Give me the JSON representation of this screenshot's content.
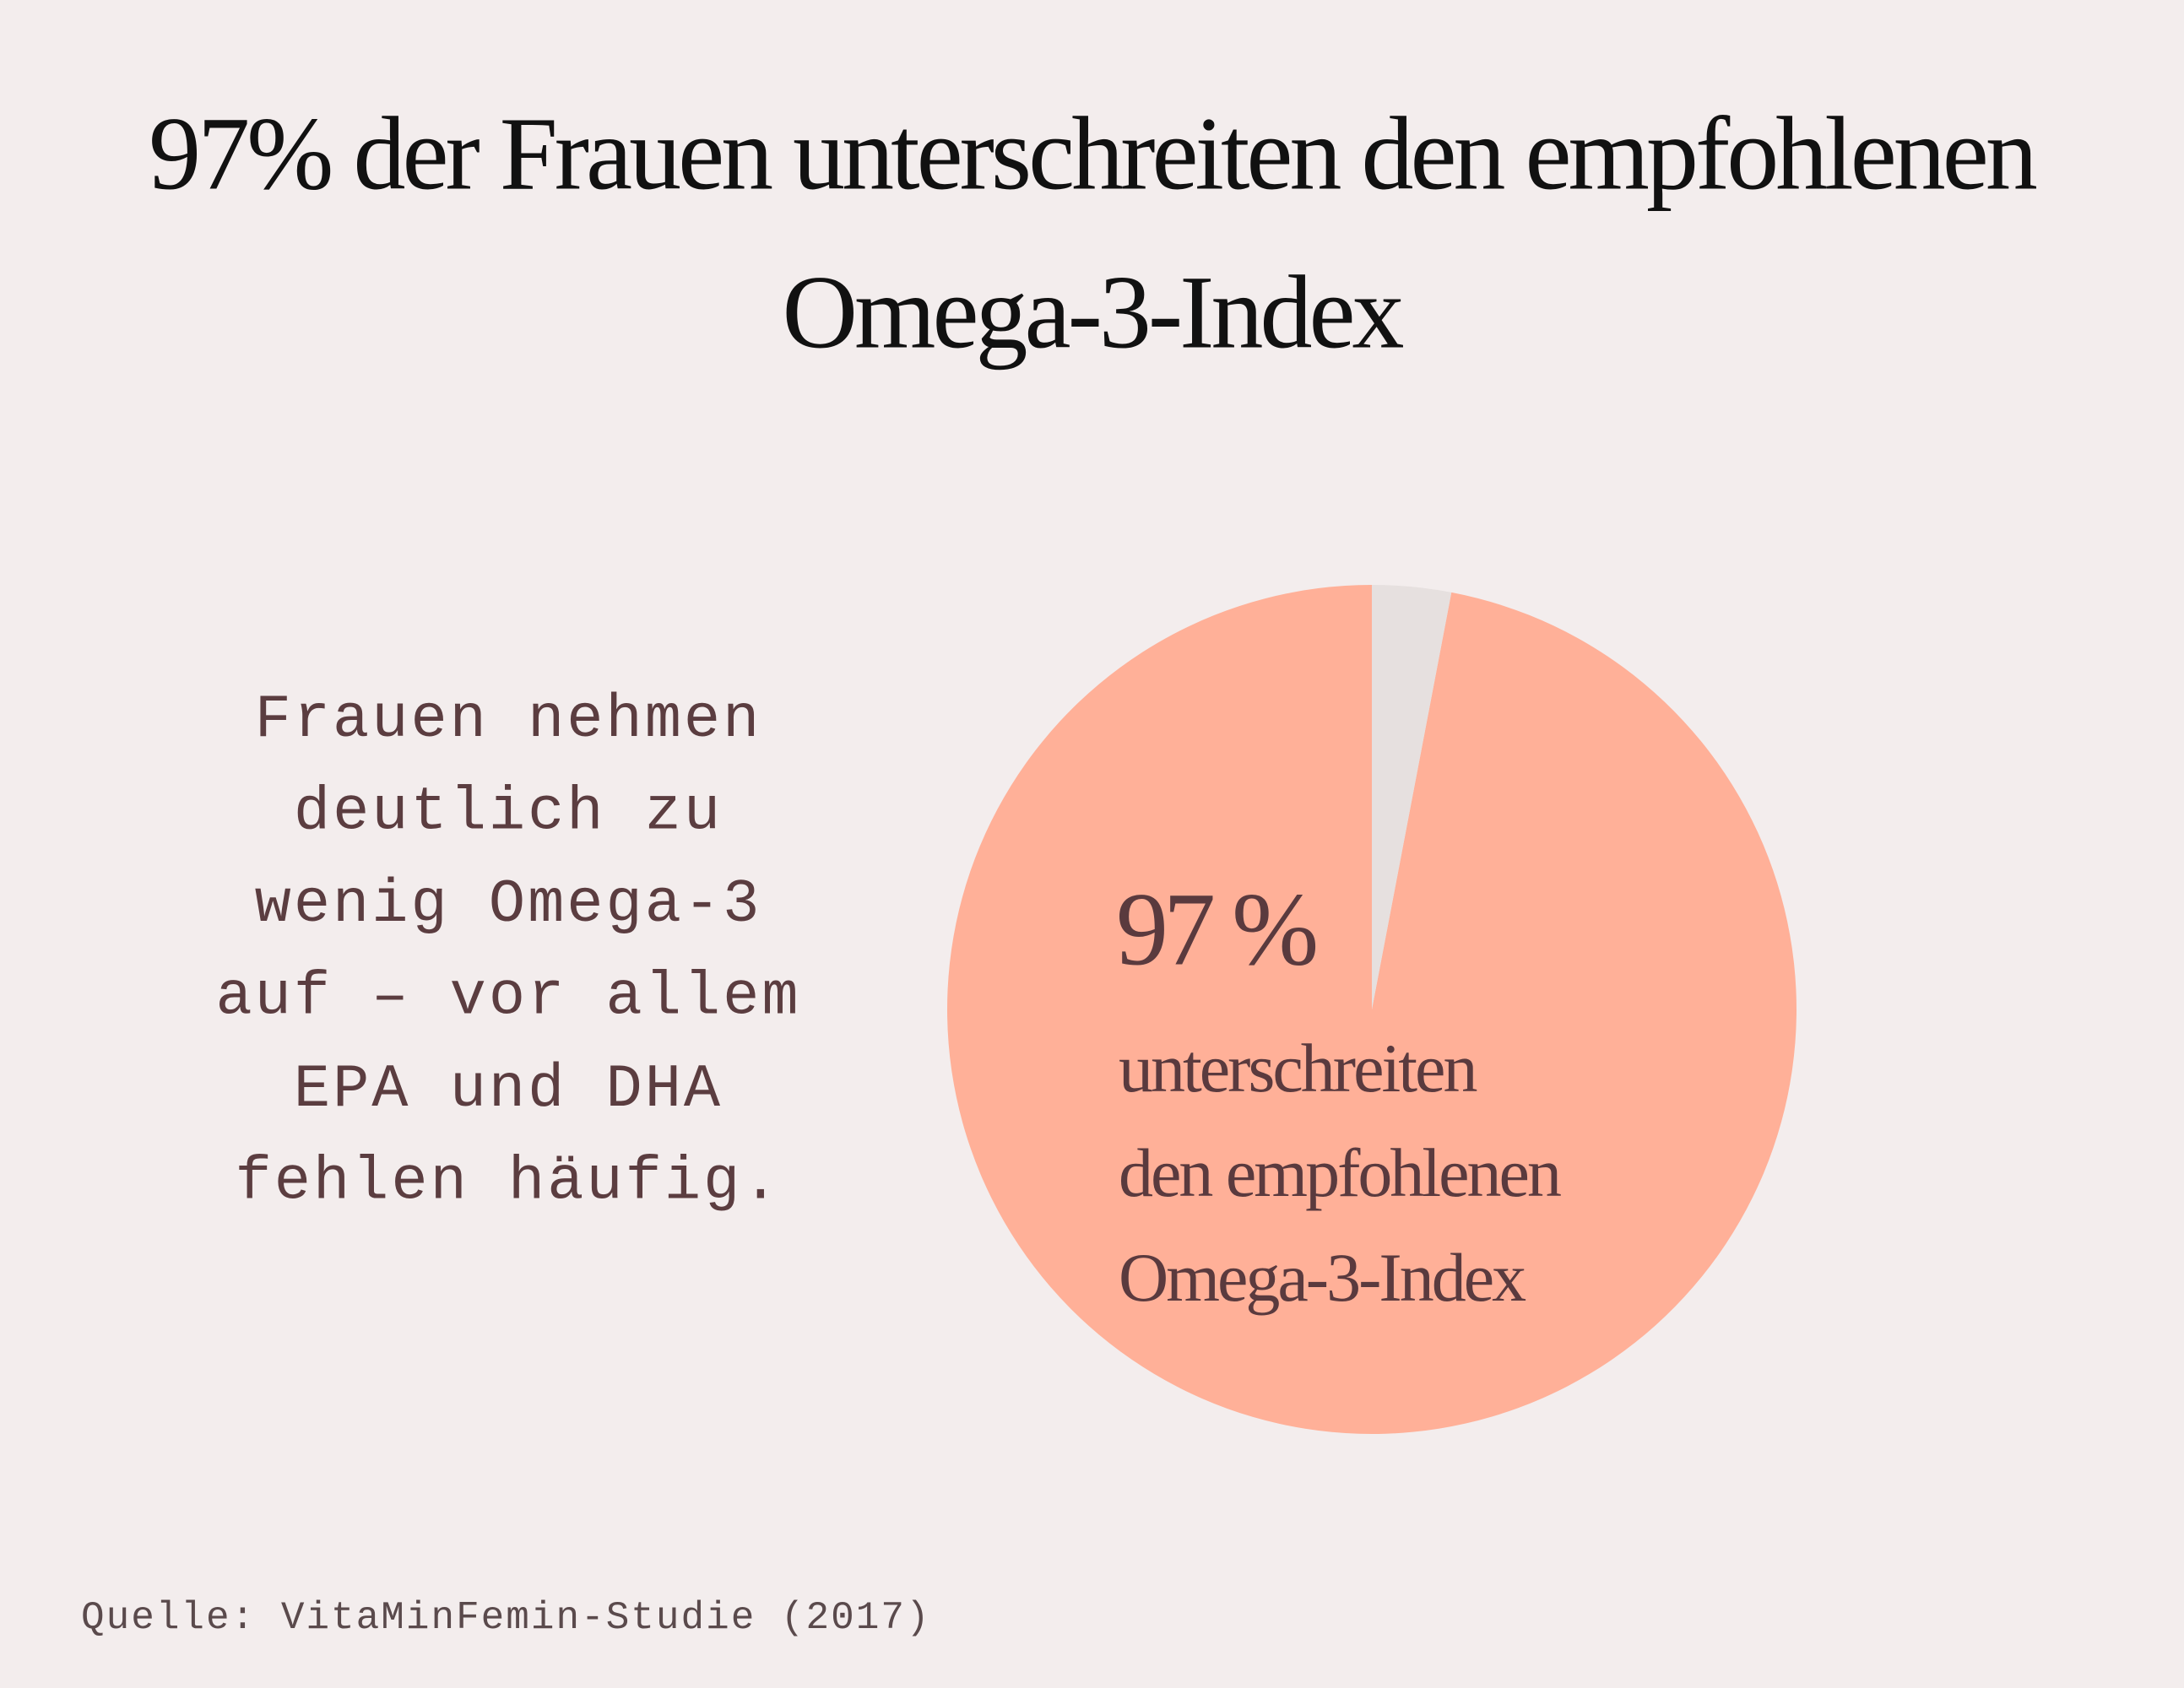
{
  "chart_data": {
    "type": "pie",
    "title_lines": [
      "97% der Frauen unterschreiten den empfohlenen",
      "Omega-3-Index"
    ],
    "side_text_lines": [
      "Frauen nehmen",
      "deutlich zu",
      "wenig Omega-3",
      "auf – vor allem",
      "EPA und DHA",
      "fehlen häufig."
    ],
    "values": [
      97,
      3
    ],
    "value_labels": [
      "97 %",
      null
    ],
    "colors": [
      "#ffb098",
      "#e6e0df"
    ],
    "annotation_lines": [
      "unterschreiten",
      "den empfohlenen",
      "Omega-3-Index"
    ],
    "source": "Quelle: VitaMinFemin-Studie (2017)"
  }
}
